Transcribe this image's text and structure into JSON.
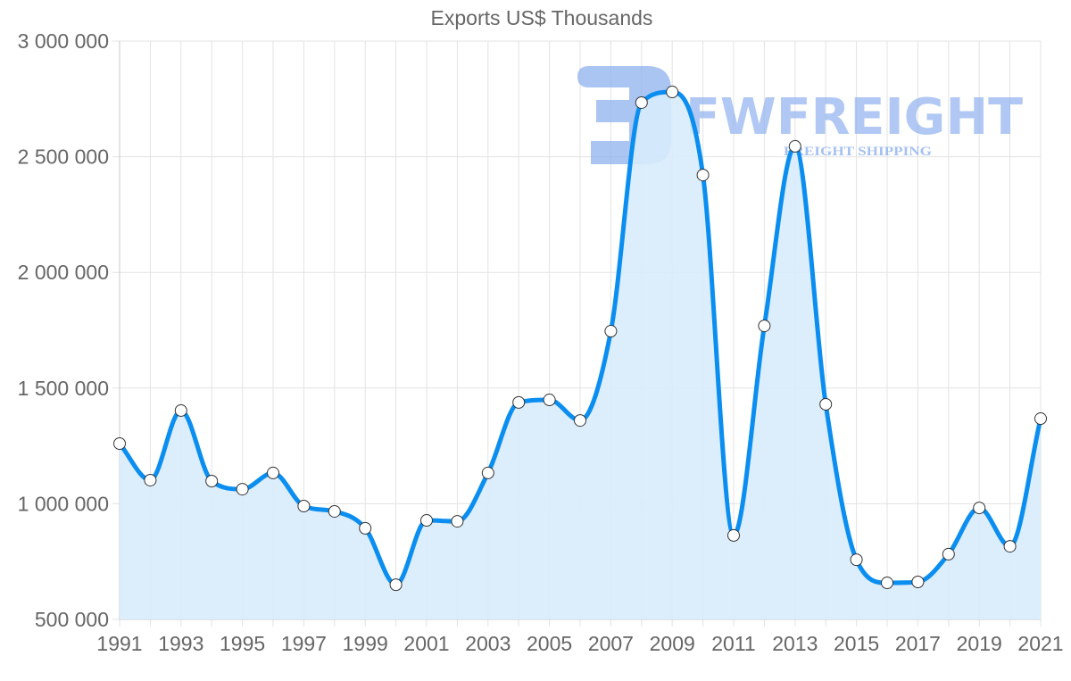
{
  "chart": {
    "title": "Exports US$ Thousands",
    "watermark": {
      "brand": "FWFREIGHT",
      "tagline": "FREIGHT SHIPPING"
    },
    "colors": {
      "line": "#0a8ef0",
      "fill": "#d8ebfc",
      "point_fill": "#ffffff",
      "point_stroke": "#333333",
      "grid": "#e3e3e3",
      "axis_text": "#666666",
      "watermark": "#8fb2ee"
    }
  },
  "chart_data": {
    "type": "area",
    "title": "Exports US$ Thousands",
    "xlabel": "",
    "ylabel": "",
    "x": [
      1991,
      1992,
      1993,
      1994,
      1995,
      1996,
      1997,
      1998,
      1999,
      2000,
      2001,
      2002,
      2003,
      2004,
      2005,
      2006,
      2007,
      2008,
      2009,
      2010,
      2011,
      2012,
      2013,
      2014,
      2015,
      2016,
      2017,
      2018,
      2019,
      2020,
      2021
    ],
    "series": [
      {
        "name": "Exports US$ Thousands",
        "values": [
          1260000,
          1102000,
          1403000,
          1098000,
          1063000,
          1133000,
          990000,
          967000,
          894000,
          650000,
          928000,
          924000,
          1133000,
          1438000,
          1449000,
          1360000,
          1746000,
          2734000,
          2780000,
          2421000,
          863000,
          1769000,
          2545000,
          1430000,
          758000,
          658000,
          662000,
          782000,
          982000,
          816000,
          1368000
        ]
      }
    ],
    "x_tick_labels": [
      "1991",
      "1993",
      "1995",
      "1997",
      "1999",
      "2001",
      "2003",
      "2005",
      "2007",
      "2009",
      "2011",
      "2013",
      "2015",
      "2017",
      "2019",
      "2021"
    ],
    "y_tick_labels": [
      "3 000 000",
      "2 500 000",
      "2 000 000",
      "1 500 000",
      "1 000 000",
      "500 000"
    ],
    "y_ticks": [
      3000000,
      2500000,
      2000000,
      1500000,
      1000000,
      500000
    ],
    "ylim": [
      500000,
      3000000
    ],
    "xlim": [
      1991,
      2021
    ],
    "grid": true,
    "legend": "none"
  }
}
